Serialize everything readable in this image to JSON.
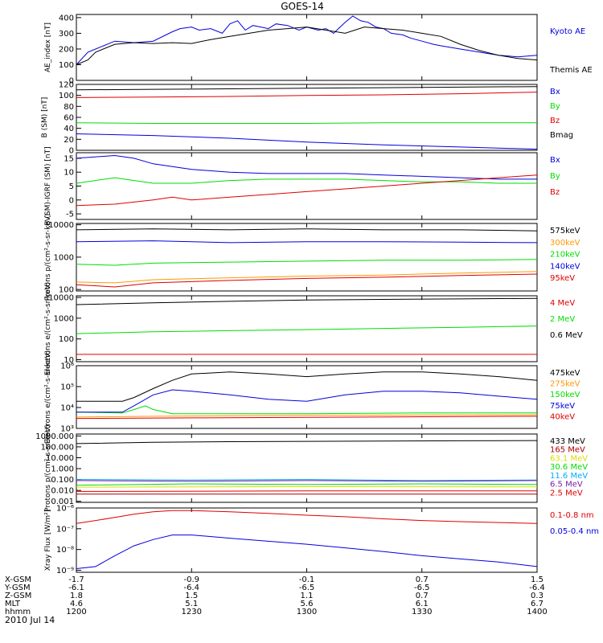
{
  "title": "GOES-14",
  "date": "2010 Jul 14",
  "colors": {
    "black": "#000000",
    "blue": "#0000dd",
    "green": "#00dd00",
    "red": "#dd0000",
    "orange": "#ff9900",
    "yellow": "#dddd00",
    "cyan": "#00aaff",
    "purple": "#7a1fa2",
    "darkred": "#aa0000"
  },
  "orbit": {
    "labels": [
      "X-GSM",
      "Y-GSM",
      "Z-GSM",
      "MLT",
      "hhmm"
    ],
    "rows": [
      [
        "-1.7",
        "-0.9",
        "-0.1",
        "0.7",
        "1.5"
      ],
      [
        "-6.1",
        "-6.4",
        "-6.5",
        "-6.5",
        "-6.4"
      ],
      [
        "1.8",
        "1.5",
        "1.1",
        "0.7",
        "0.3"
      ],
      [
        "4.6",
        "5.1",
        "5.6",
        "6.1",
        "6.7"
      ],
      [
        "1200",
        "1230",
        "1300",
        "1330",
        "1400"
      ]
    ]
  },
  "chart_data": [
    {
      "type": "line",
      "ylabel": "AE_index [nT]",
      "ylim": [
        0,
        420
      ],
      "yscale": "linear",
      "yticks": [
        "0",
        "100",
        "200",
        "300",
        "400"
      ],
      "series": [
        {
          "name": "Kyoto AE",
          "color": "blue",
          "x": [
            1200,
            1203,
            1205,
            1210,
            1215,
            1220,
            1225,
            1227,
            1230,
            1232,
            1235,
            1238,
            1240,
            1242,
            1244,
            1246,
            1248,
            1250,
            1252,
            1255,
            1258,
            1300,
            1303,
            1305,
            1307,
            1310,
            1312,
            1314,
            1316,
            1318,
            1320,
            1322,
            1325,
            1327,
            1330,
            1333,
            1335,
            1340,
            1345,
            1350,
            1355,
            1400
          ],
          "y": [
            100,
            180,
            200,
            250,
            240,
            250,
            310,
            330,
            340,
            320,
            330,
            300,
            360,
            380,
            320,
            350,
            340,
            330,
            360,
            350,
            320,
            340,
            320,
            330,
            300,
            370,
            410,
            380,
            370,
            340,
            330,
            300,
            290,
            270,
            250,
            230,
            220,
            200,
            180,
            160,
            150,
            160
          ]
        },
        {
          "name": "Themis AE",
          "color": "black",
          "x": [
            1200,
            1203,
            1205,
            1210,
            1215,
            1220,
            1225,
            1230,
            1235,
            1240,
            1245,
            1250,
            1255,
            1300,
            1305,
            1310,
            1315,
            1320,
            1325,
            1330,
            1335,
            1340,
            1345,
            1350,
            1355,
            1400
          ],
          "y": [
            100,
            130,
            180,
            230,
            240,
            235,
            240,
            235,
            260,
            280,
            300,
            320,
            330,
            340,
            320,
            300,
            340,
            330,
            320,
            300,
            280,
            230,
            190,
            160,
            140,
            130
          ]
        }
      ]
    },
    {
      "type": "line",
      "ylabel": "B (SM) [nT]",
      "ylim": [
        0,
        120
      ],
      "yscale": "linear",
      "yticks": [
        "0",
        "20",
        "40",
        "60",
        "80",
        "100",
        "120"
      ],
      "series": [
        {
          "name": "Bx",
          "color": "blue",
          "x": [
            1200,
            1220,
            1240,
            1300,
            1320,
            1340,
            1400
          ],
          "y": [
            30,
            27,
            22,
            15,
            10,
            6,
            2
          ]
        },
        {
          "name": "By",
          "color": "green",
          "x": [
            1200,
            1220,
            1240,
            1300,
            1320,
            1340,
            1400
          ],
          "y": [
            50,
            49,
            49,
            49,
            50,
            50,
            50
          ]
        },
        {
          "name": "Bz",
          "color": "red",
          "x": [
            1200,
            1220,
            1240,
            1300,
            1320,
            1340,
            1400
          ],
          "y": [
            96,
            97,
            98,
            100,
            101,
            103,
            106
          ]
        },
        {
          "name": "Bmag",
          "color": "black",
          "x": [
            1200,
            1220,
            1240,
            1300,
            1320,
            1340,
            1400
          ],
          "y": [
            110,
            111,
            112,
            113,
            114,
            115,
            116
          ]
        }
      ]
    },
    {
      "type": "line",
      "ylabel": "B (SM)-IGRF (SM) [nT]",
      "ylim": [
        -7,
        17
      ],
      "yscale": "linear",
      "yticks": [
        "-5",
        "0",
        "5",
        "10",
        "15"
      ],
      "series": [
        {
          "name": "Bx",
          "color": "blue",
          "x": [
            1200,
            1210,
            1215,
            1220,
            1230,
            1240,
            1250,
            1300,
            1310,
            1320,
            1330,
            1340,
            1350,
            1400
          ],
          "y": [
            15,
            16,
            15,
            13,
            11,
            10,
            9.5,
            9.5,
            9.5,
            9,
            8.5,
            8,
            7.5,
            7.5
          ]
        },
        {
          "name": "By",
          "color": "green",
          "x": [
            1200,
            1210,
            1220,
            1230,
            1240,
            1250,
            1300,
            1310,
            1320,
            1330,
            1340,
            1350,
            1400
          ],
          "y": [
            6,
            8,
            6,
            6,
            7,
            7.5,
            7.5,
            7.5,
            7,
            6.5,
            6.5,
            6,
            6
          ]
        },
        {
          "name": "Bz",
          "color": "red",
          "x": [
            1200,
            1210,
            1220,
            1225,
            1230,
            1240,
            1250,
            1300,
            1310,
            1320,
            1330,
            1340,
            1350,
            1400
          ],
          "y": [
            -2,
            -1.5,
            0,
            1,
            0,
            1,
            2,
            3,
            4,
            5,
            6,
            7,
            8,
            9
          ]
        }
      ]
    },
    {
      "type": "line",
      "ylabel": "Protons p/(cm²-s-sr-keV)",
      "ylim": [
        90,
        11000
      ],
      "yscale": "log",
      "yticks": [
        "100",
        "1000",
        "10000"
      ],
      "series": [
        {
          "name": "575keV",
          "color": "black",
          "x": [
            1200,
            1220,
            1240,
            1300,
            1320,
            1340,
            1400
          ],
          "y": [
            7000,
            7500,
            7000,
            7500,
            7000,
            7000,
            6500
          ]
        },
        {
          "name": "300keV",
          "color": "orange",
          "x": [
            1200,
            1210,
            1220,
            1240,
            1300,
            1320,
            1340,
            1400
          ],
          "y": [
            170,
            160,
            200,
            230,
            260,
            280,
            320,
            360
          ]
        },
        {
          "name": "210keV",
          "color": "green",
          "x": [
            1200,
            1210,
            1220,
            1240,
            1300,
            1320,
            1340,
            1400
          ],
          "y": [
            600,
            560,
            650,
            700,
            750,
            800,
            800,
            850
          ]
        },
        {
          "name": "140keV",
          "color": "blue",
          "x": [
            1200,
            1220,
            1240,
            1300,
            1320,
            1340,
            1400
          ],
          "y": [
            3000,
            3200,
            2800,
            3000,
            3000,
            2900,
            2800
          ]
        },
        {
          "name": "95keV",
          "color": "red",
          "x": [
            1200,
            1210,
            1220,
            1240,
            1300,
            1320,
            1340,
            1400
          ],
          "y": [
            140,
            120,
            160,
            190,
            220,
            240,
            270,
            300
          ]
        }
      ]
    },
    {
      "type": "line",
      "ylabel": "Electrons e/(cm²-s-sr-keV)",
      "ylim": [
        8,
        12000
      ],
      "yscale": "log",
      "yticks": [
        "10",
        "100",
        "1000",
        "10000"
      ],
      "series": [
        {
          "name": "4 MeV",
          "color": "red",
          "x": [
            1200,
            1230,
            1300,
            1330,
            1400
          ],
          "y": [
            18,
            18,
            18,
            18,
            18
          ]
        },
        {
          "name": "2 MeV",
          "color": "green",
          "x": [
            1200,
            1220,
            1240,
            1300,
            1320,
            1340,
            1400
          ],
          "y": [
            180,
            220,
            250,
            280,
            320,
            360,
            420
          ]
        },
        {
          "name": "0.6 MeV",
          "color": "black",
          "x": [
            1200,
            1220,
            1240,
            1300,
            1320,
            1340,
            1400
          ],
          "y": [
            4500,
            5500,
            6500,
            7500,
            8000,
            8500,
            9000
          ]
        }
      ]
    },
    {
      "type": "line",
      "ylabel": "Electrons e/(cm²-s-sr-keV)",
      "ylim": [
        1000,
        1000000
      ],
      "yscale": "log",
      "yticks": [
        "10³",
        "10⁴",
        "10⁵",
        "10⁶"
      ],
      "series": [
        {
          "name": "475keV",
          "color": "black",
          "x": [
            1200,
            1212,
            1215,
            1220,
            1225,
            1230,
            1240,
            1250,
            1300,
            1310,
            1320,
            1330,
            1340,
            1350,
            1400
          ],
          "y": [
            20000,
            20000,
            30000,
            80000,
            200000,
            400000,
            500000,
            400000,
            300000,
            400000,
            500000,
            500000,
            400000,
            300000,
            200000
          ]
        },
        {
          "name": "275keV",
          "color": "orange",
          "x": [
            1200,
            1220,
            1240,
            1300,
            1330,
            1400
          ],
          "y": [
            3500,
            3800,
            4000,
            4200,
            4400,
            4500
          ]
        },
        {
          "name": "150keV",
          "color": "green",
          "x": [
            1200,
            1212,
            1215,
            1218,
            1220,
            1225,
            1240,
            1300,
            1330,
            1400
          ],
          "y": [
            6000,
            5500,
            8000,
            12000,
            8000,
            5000,
            5000,
            5000,
            5500,
            5500
          ]
        },
        {
          "name": "75keV",
          "color": "blue",
          "x": [
            1200,
            1212,
            1215,
            1220,
            1225,
            1230,
            1240,
            1250,
            1300,
            1310,
            1320,
            1330,
            1340,
            1350,
            1400
          ],
          "y": [
            6000,
            6000,
            12000,
            40000,
            70000,
            60000,
            40000,
            25000,
            20000,
            40000,
            60000,
            60000,
            50000,
            35000,
            25000
          ]
        },
        {
          "name": "40keV",
          "color": "red",
          "x": [
            1200,
            1230,
            1300,
            1330,
            1400
          ],
          "y": [
            3000,
            3200,
            3400,
            3600,
            3800
          ]
        }
      ]
    },
    {
      "type": "line",
      "ylabel": "Protons p/(cm²-s-sr-keV)",
      "ylim": [
        0.0008,
        1500
      ],
      "yscale": "log",
      "yticks": [
        "0.001",
        "0.010",
        "0.100",
        "1.000",
        "10.000",
        "100.000",
        "1000.000"
      ],
      "series": [
        {
          "name": "433 MeV",
          "color": "black",
          "x": [
            1200,
            1220,
            1240,
            1300,
            1320,
            1340,
            1400
          ],
          "y": [
            200,
            260,
            300,
            320,
            340,
            360,
            380
          ]
        },
        {
          "name": "165 MeV",
          "color": "darkred",
          "x": [
            1200,
            1300,
            1400
          ],
          "y": [
            0.0045,
            0.0045,
            0.0045
          ]
        },
        {
          "name": "63.1 MeV",
          "color": "yellow",
          "x": [
            1200,
            1300,
            1400
          ],
          "y": [
            0.02,
            0.022,
            0.021
          ]
        },
        {
          "name": "30.6 MeV",
          "color": "green",
          "x": [
            1200,
            1230,
            1300,
            1330,
            1400
          ],
          "y": [
            0.03,
            0.04,
            0.035,
            0.04,
            0.035
          ]
        },
        {
          "name": "11.6 MeV",
          "color": "cyan",
          "x": [
            1200,
            1230,
            1300,
            1330,
            1400
          ],
          "y": [
            0.1,
            0.09,
            0.1,
            0.08,
            0.09
          ]
        },
        {
          "name": "6.5 MeV",
          "color": "purple",
          "x": [
            1200,
            1230,
            1300,
            1330,
            1400
          ],
          "y": [
            0.08,
            0.07,
            0.08,
            0.07,
            0.08
          ]
        },
        {
          "name": "2.5 MeV",
          "color": "red",
          "x": [
            1200,
            1300,
            1400
          ],
          "y": [
            0.008,
            0.009,
            0.009
          ]
        }
      ]
    },
    {
      "type": "line",
      "ylabel": "Xray Flux [W/m²]",
      "ylim": [
        8e-10,
        1e-06
      ],
      "yscale": "log",
      "yticks": [
        "10⁻⁹",
        "10⁻⁸",
        "10⁻⁷",
        "10⁻⁶"
      ],
      "series": [
        {
          "name": "0.1-0.8 nm",
          "color": "red",
          "x": [
            1200,
            1205,
            1210,
            1215,
            1220,
            1225,
            1230,
            1240,
            1250,
            1300,
            1310,
            1320,
            1330,
            1340,
            1350,
            1400
          ],
          "y": [
            1.8e-07,
            2.5e-07,
            3.5e-07,
            5e-07,
            6.5e-07,
            7.5e-07,
            7.5e-07,
            6.5e-07,
            5.5e-07,
            4.5e-07,
            3.8e-07,
            3e-07,
            2.5e-07,
            2.2e-07,
            2e-07,
            1.8e-07
          ]
        },
        {
          "name": "0.05-0.4 nm",
          "color": "blue",
          "x": [
            1200,
            1205,
            1210,
            1215,
            1220,
            1225,
            1230,
            1240,
            1250,
            1300,
            1310,
            1320,
            1330,
            1340,
            1350,
            1400
          ],
          "y": [
            1.2e-09,
            1.5e-09,
            5e-09,
            1.5e-08,
            3e-08,
            5e-08,
            5e-08,
            3.5e-08,
            2.5e-08,
            1.8e-08,
            1.2e-08,
            8e-09,
            5e-09,
            3.5e-09,
            2.5e-09,
            1.5e-09
          ]
        }
      ]
    }
  ]
}
